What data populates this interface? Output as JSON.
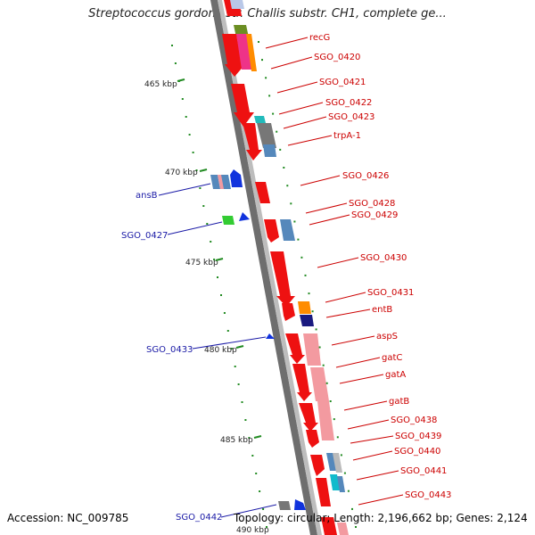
{
  "title": "Streptococcus gordonii str. Challis substr. CH1, complete ge...",
  "footer": {
    "accession": "Accession: NC_009785",
    "summary": "Topology: circular; Length: 2,196,662 bp; Genes: 2,124"
  },
  "colors": {
    "forward_gene": "#ee1111",
    "reverse_gene": "#1133dd",
    "backbone": "#8a8a8a",
    "tick": "#228b22",
    "label_forward": "#cc0000",
    "label_reverse": "#1a1aa6"
  },
  "scale_labels": [
    "465 kbp",
    "470 kbp",
    "475 kbp",
    "480 kbp",
    "485 kbp",
    "490 kbp"
  ],
  "right_labels": [
    "recG",
    "SGO_0420",
    "SGO_0421",
    "SGO_0422",
    "SGO_0423",
    "trpA-1",
    "SGO_0426",
    "SGO_0428",
    "SGO_0429",
    "SGO_0430",
    "SGO_0431",
    "entB",
    "aspS",
    "gatC",
    "gatA",
    "gatB",
    "SGO_0438",
    "SGO_0439",
    "SGO_0440",
    "SGO_0441",
    "SGO_0443"
  ],
  "left_labels": [
    "ansB",
    "SGO_0427",
    "SGO_0433",
    "SGO_0442"
  ]
}
